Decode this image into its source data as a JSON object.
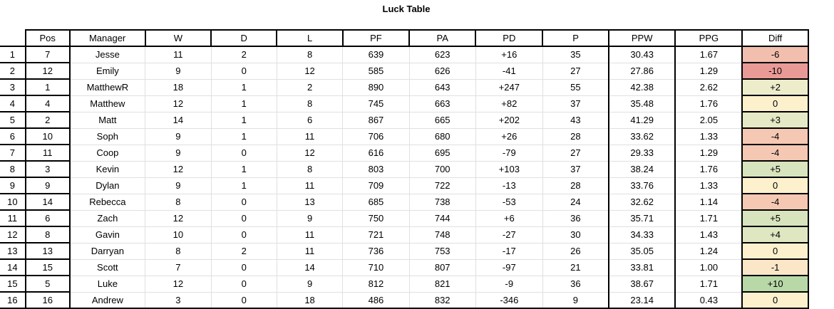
{
  "title": "Luck Table",
  "headers": [
    "Pos",
    "Manager",
    "W",
    "D",
    "L",
    "PF",
    "PA",
    "PD",
    "P",
    "PPW",
    "PPG",
    "Diff"
  ],
  "rows": [
    {
      "rank": "1",
      "pos": "7",
      "manager": "Jesse",
      "w": "11",
      "d": "2",
      "l": "8",
      "pf": "639",
      "pa": "623",
      "pd": "+16",
      "p": "35",
      "ppw": "30.43",
      "ppg": "1.67",
      "diff": "-6",
      "color": "#f2bfae"
    },
    {
      "rank": "2",
      "pos": "12",
      "manager": "Emily",
      "w": "9",
      "d": "0",
      "l": "12",
      "pf": "585",
      "pa": "626",
      "pd": "-41",
      "p": "27",
      "ppw": "27.86",
      "ppg": "1.29",
      "diff": "-10",
      "color": "#e99a97"
    },
    {
      "rank": "3",
      "pos": "1",
      "manager": "MatthewR",
      "w": "18",
      "d": "1",
      "l": "2",
      "pf": "890",
      "pa": "643",
      "pd": "+247",
      "p": "55",
      "ppw": "42.38",
      "ppg": "2.62",
      "diff": "+2",
      "color": "#eeedcb"
    },
    {
      "rank": "4",
      "pos": "4",
      "manager": "Matthew",
      "w": "12",
      "d": "1",
      "l": "8",
      "pf": "745",
      "pa": "663",
      "pd": "+82",
      "p": "37",
      "ppw": "35.48",
      "ppg": "1.76",
      "diff": "0",
      "color": "#fdf1cd"
    },
    {
      "rank": "5",
      "pos": "2",
      "manager": "Matt",
      "w": "14",
      "d": "1",
      "l": "6",
      "pf": "867",
      "pa": "665",
      "pd": "+202",
      "p": "43",
      "ppw": "41.29",
      "ppg": "2.05",
      "diff": "+3",
      "color": "#e5e9c5"
    },
    {
      "rank": "6",
      "pos": "10",
      "manager": "Soph",
      "w": "9",
      "d": "1",
      "l": "11",
      "pf": "706",
      "pa": "680",
      "pd": "+26",
      "p": "28",
      "ppw": "33.62",
      "ppg": "1.33",
      "diff": "-4",
      "color": "#f4c8b3"
    },
    {
      "rank": "7",
      "pos": "11",
      "manager": "Coop",
      "w": "9",
      "d": "0",
      "l": "12",
      "pf": "616",
      "pa": "695",
      "pd": "-79",
      "p": "27",
      "ppw": "29.33",
      "ppg": "1.29",
      "diff": "-4",
      "color": "#f4c8b3"
    },
    {
      "rank": "8",
      "pos": "3",
      "manager": "Kevin",
      "w": "12",
      "d": "1",
      "l": "8",
      "pf": "803",
      "pa": "700",
      "pd": "+103",
      "p": "37",
      "ppw": "38.24",
      "ppg": "1.76",
      "diff": "+5",
      "color": "#d7e4bd"
    },
    {
      "rank": "9",
      "pos": "9",
      "manager": "Dylan",
      "w": "9",
      "d": "1",
      "l": "11",
      "pf": "709",
      "pa": "722",
      "pd": "-13",
      "p": "28",
      "ppw": "33.76",
      "ppg": "1.33",
      "diff": "0",
      "color": "#fdf1cd"
    },
    {
      "rank": "10",
      "pos": "14",
      "manager": "Rebecca",
      "w": "8",
      "d": "0",
      "l": "13",
      "pf": "685",
      "pa": "738",
      "pd": "-53",
      "p": "24",
      "ppw": "32.62",
      "ppg": "1.14",
      "diff": "-4",
      "color": "#f4c8b3"
    },
    {
      "rank": "11",
      "pos": "6",
      "manager": "Zach",
      "w": "12",
      "d": "0",
      "l": "9",
      "pf": "750",
      "pa": "744",
      "pd": "+6",
      "p": "36",
      "ppw": "35.71",
      "ppg": "1.71",
      "diff": "+5",
      "color": "#d7e4bd"
    },
    {
      "rank": "12",
      "pos": "8",
      "manager": "Gavin",
      "w": "10",
      "d": "0",
      "l": "11",
      "pf": "721",
      "pa": "748",
      "pd": "-27",
      "p": "30",
      "ppw": "34.33",
      "ppg": "1.43",
      "diff": "+4",
      "color": "#dee7c1"
    },
    {
      "rank": "13",
      "pos": "13",
      "manager": "Darryan",
      "w": "8",
      "d": "2",
      "l": "11",
      "pf": "736",
      "pa": "753",
      "pd": "-17",
      "p": "26",
      "ppw": "35.05",
      "ppg": "1.24",
      "diff": "0",
      "color": "#fdf1cd"
    },
    {
      "rank": "14",
      "pos": "15",
      "manager": "Scott",
      "w": "7",
      "d": "0",
      "l": "14",
      "pf": "710",
      "pa": "807",
      "pd": "-97",
      "p": "21",
      "ppw": "33.81",
      "ppg": "1.00",
      "diff": "-1",
      "color": "#fbe6c8"
    },
    {
      "rank": "15",
      "pos": "5",
      "manager": "Luke",
      "w": "12",
      "d": "0",
      "l": "9",
      "pf": "812",
      "pa": "821",
      "pd": "-9",
      "p": "36",
      "ppw": "38.67",
      "ppg": "1.71",
      "diff": "+10",
      "color": "#b8d8a8"
    },
    {
      "rank": "16",
      "pos": "16",
      "manager": "Andrew",
      "w": "3",
      "d": "0",
      "l": "18",
      "pf": "486",
      "pa": "832",
      "pd": "-346",
      "p": "9",
      "ppw": "23.14",
      "ppg": "0.43",
      "diff": "0",
      "color": "#fdf1cd"
    }
  ]
}
